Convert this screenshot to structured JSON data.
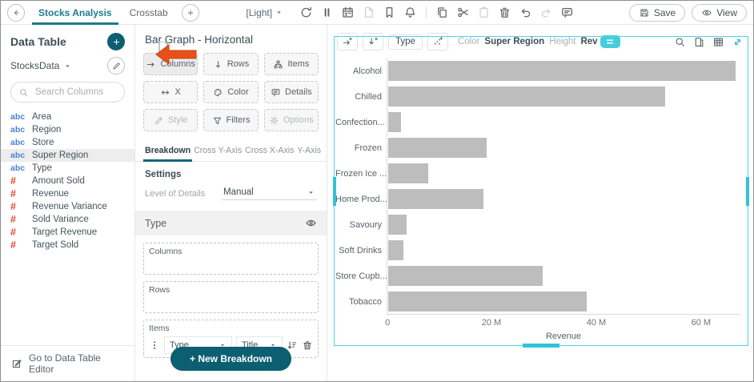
{
  "colors": {
    "accent_teal": "#0c5f71",
    "tab_teal": "#1d7b8c",
    "selection_cyan": "#4fd3e2",
    "drag_arrow_orange": "#e8501a",
    "bar_gray": "#bdbdbd",
    "text_field_blue": "#4a82d4",
    "numeric_field_red": "#e2492f"
  },
  "toolbar": {
    "back_icon": "back-icon",
    "tabs": [
      {
        "label": "Stocks Analysis",
        "active": true
      },
      {
        "label": "Crosstab",
        "active": false
      }
    ],
    "add_tab_icon": "plus-icon",
    "theme_value": "[Light]",
    "icons": [
      {
        "name": "refresh-icon",
        "glyph": "refresh",
        "disabled": false
      },
      {
        "name": "pause-icon",
        "glyph": "pause",
        "disabled": false
      },
      {
        "name": "schedule-icon",
        "glyph": "calendar",
        "disabled": false
      },
      {
        "name": "export-document-icon",
        "glyph": "file",
        "disabled": true
      },
      {
        "name": "bookmark-icon",
        "glyph": "bookmark",
        "disabled": false
      },
      {
        "name": "notifications-icon",
        "glyph": "bell",
        "disabled": false
      },
      {
        "name": "divider",
        "glyph": "divider",
        "disabled": false
      },
      {
        "name": "copy-icon",
        "glyph": "copy",
        "disabled": false
      },
      {
        "name": "cut-icon",
        "glyph": "scissors",
        "disabled": false
      },
      {
        "name": "paste-icon",
        "glyph": "clipboard",
        "disabled": true
      },
      {
        "name": "delete-icon",
        "glyph": "trash",
        "disabled": false
      },
      {
        "name": "undo-icon",
        "glyph": "undo",
        "disabled": false
      },
      {
        "name": "redo-icon",
        "glyph": "redo",
        "disabled": true
      },
      {
        "name": "comment-icon",
        "glyph": "comment",
        "disabled": false
      }
    ],
    "save_label": "Save",
    "view_label": "View"
  },
  "sidebar": {
    "title": "Data Table",
    "table_name": "StocksData",
    "search_placeholder": "Search Columns",
    "fields": [
      {
        "prefix": "abc",
        "label": "Area",
        "selected": false
      },
      {
        "prefix": "abc",
        "label": "Region",
        "selected": false
      },
      {
        "prefix": "abc",
        "label": "Store",
        "selected": false
      },
      {
        "prefix": "abc",
        "label": "Super Region",
        "selected": true
      },
      {
        "prefix": "abc",
        "label": "Type",
        "selected": false
      },
      {
        "prefix": "#",
        "label": "Amount Sold",
        "selected": false
      },
      {
        "prefix": "#",
        "label": "Revenue",
        "selected": false
      },
      {
        "prefix": "#",
        "label": "Revenue Variance",
        "selected": false
      },
      {
        "prefix": "#",
        "label": "Sold Variance",
        "selected": false
      },
      {
        "prefix": "#",
        "label": "Target Revenue",
        "selected": false
      },
      {
        "prefix": "#",
        "label": "Target Sold",
        "selected": false
      }
    ],
    "footer_label": "Go to Data Table Editor"
  },
  "panel": {
    "title": "Bar Graph - Horizontal",
    "shelves": [
      {
        "label": "Columns",
        "icon": "arrow-right",
        "disabled": false,
        "highlighted": true
      },
      {
        "label": "Rows",
        "icon": "arrow-down",
        "disabled": false
      },
      {
        "label": "Items",
        "icon": "hierarchy",
        "disabled": false
      },
      {
        "label": "X",
        "icon": "arrow-lr",
        "disabled": false
      },
      {
        "label": "Color",
        "icon": "palette",
        "disabled": false
      },
      {
        "label": "Details",
        "icon": "speech",
        "disabled": false
      },
      {
        "label": "Style",
        "icon": "style",
        "disabled": true
      },
      {
        "label": "Filters",
        "icon": "funnel",
        "disabled": false
      },
      {
        "label": "Options",
        "icon": "gear",
        "disabled": true
      }
    ],
    "tabs": [
      {
        "label": "Breakdown",
        "active": true
      },
      {
        "label": "Cross Y-Axis",
        "active": false
      },
      {
        "label": "Cross X-Axis",
        "active": false
      },
      {
        "label": "Y-Axis",
        "active": false
      }
    ],
    "settings_title": "Settings",
    "level_of_details_label": "Level of Details",
    "level_of_details_value": "Manual",
    "section_title": "Type",
    "dropzone_columns_label": "Columns",
    "dropzone_rows_label": "Rows",
    "dropzone_items_label": "Items",
    "item_row": {
      "field_value": "Type",
      "agg_value": "Title"
    },
    "new_breakdown_label": "+ New Breakdown"
  },
  "chart_panel": {
    "left_icons": [
      {
        "name": "add-column-icon",
        "glyph": "col-plus"
      },
      {
        "name": "add-row-icon",
        "glyph": "row-plus"
      }
    ],
    "type_chip_label": "Type",
    "scatter_icon": "scatter-plus-icon",
    "shelf_labels": [
      {
        "label": "Color",
        "muted": true
      },
      {
        "label": "Super Region",
        "muted": false
      },
      {
        "label": "Height",
        "muted": true
      },
      {
        "label": "Rev",
        "muted": false
      }
    ],
    "right_icons": [
      {
        "name": "zoom-search-icon",
        "glyph": "search",
        "accent": false
      },
      {
        "name": "export-data-icon",
        "glyph": "export",
        "accent": false
      },
      {
        "name": "data-table-icon",
        "glyph": "grid",
        "accent": false
      },
      {
        "name": "maximize-icon",
        "glyph": "expand",
        "accent": true
      }
    ]
  },
  "chart_data": {
    "type": "bar",
    "orientation": "horizontal",
    "categories": [
      "Alcohol",
      "Chilled",
      "Confection...",
      "Frozen",
      "Frozen Ice ...",
      "Home Prod...",
      "Savoury",
      "Soft Drinks",
      "Store Cupb...",
      "Tobacco"
    ],
    "values": [
      66.5,
      53,
      2.4,
      18.8,
      7.6,
      18.2,
      3.5,
      2.9,
      29.5,
      38
    ],
    "values_unit": "M",
    "xlabel": "Revenue",
    "x_ticks": [
      "0",
      "20 M",
      "40 M",
      "60 M"
    ],
    "x_tick_values": [
      0,
      20,
      40,
      60
    ],
    "xlim": [
      0,
      67.5
    ],
    "bar_color": "#bdbdbd",
    "grid": false,
    "legend": "none"
  }
}
